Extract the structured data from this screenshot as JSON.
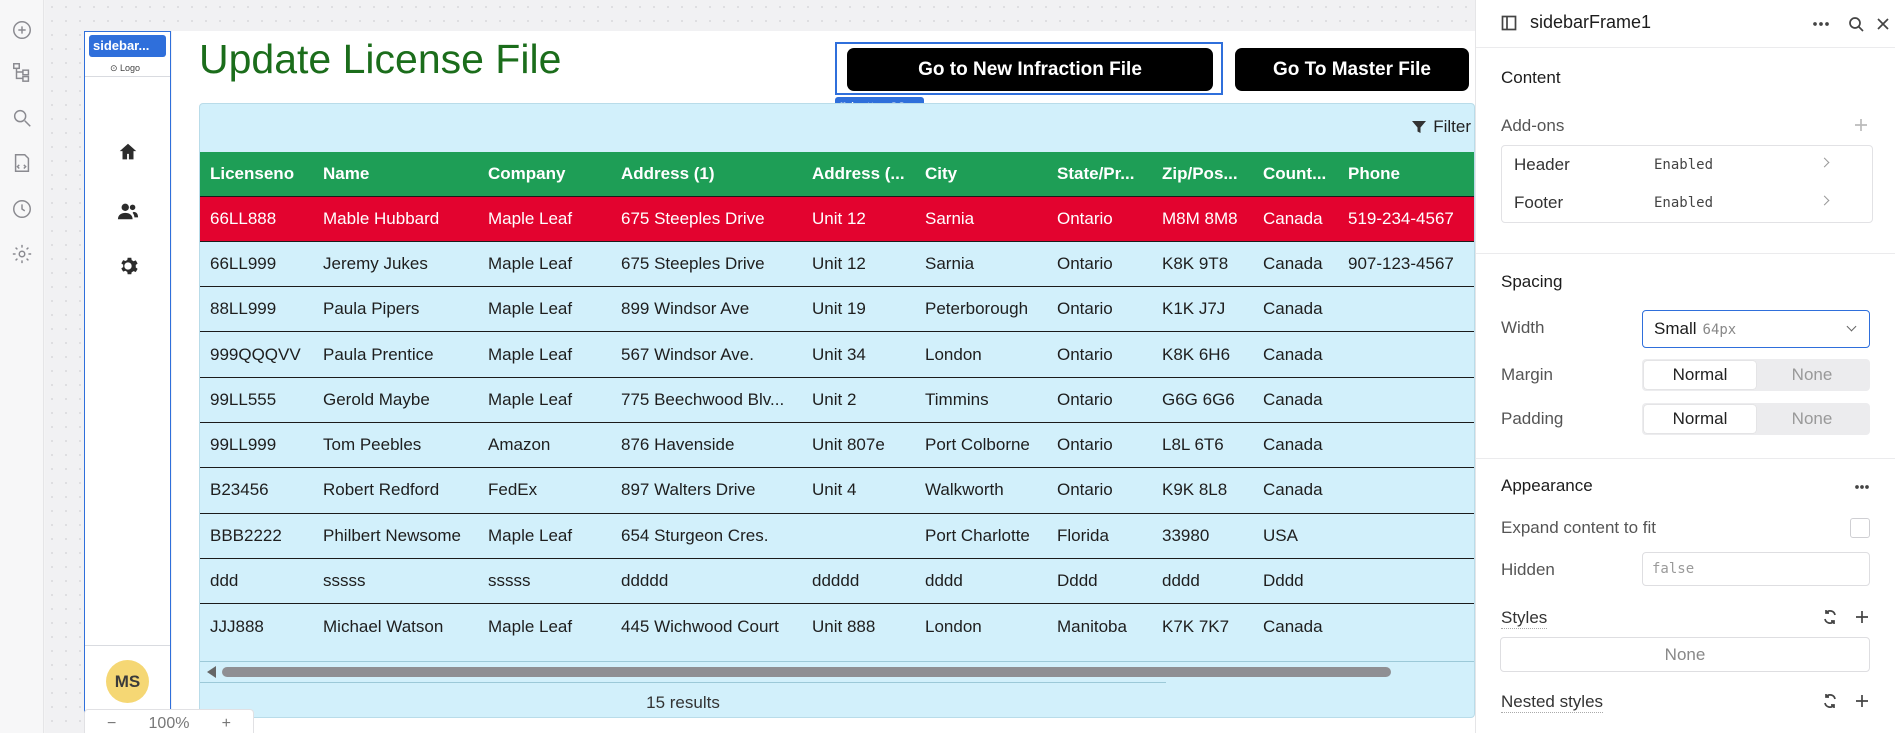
{
  "rail": {
    "icons": [
      "add-icon",
      "tree-icon",
      "search-icon",
      "code-icon",
      "history-icon",
      "settings-icon"
    ]
  },
  "app_sidebar": {
    "tag": "sidebar...",
    "logo": "⊙ Logo",
    "nav_icons": [
      "home-icon",
      "users-icon",
      "gear-icon"
    ],
    "avatar": "MS"
  },
  "page": {
    "title": "Update License File"
  },
  "buttons": {
    "new_infraction": "Go to New Infraction File",
    "master": "Go To Master File",
    "selected_chip": "button23"
  },
  "table": {
    "filter_label": "Filter",
    "columns": [
      "Licenseno",
      "Name",
      "Company",
      "Address (1)",
      "Address (...",
      "City",
      "State/Pr...",
      "Zip/Pos...",
      "Count...",
      "Phone"
    ],
    "rows": [
      [
        "66LL888",
        "Mable Hubbard",
        "Maple Leaf",
        "675 Steeples Drive",
        "Unit 12",
        "Sarnia",
        "Ontario",
        "M8M 8M8",
        "Canada",
        "519-234-4567"
      ],
      [
        "66LL999",
        "Jeremy Jukes",
        "Maple Leaf",
        "675 Steeples Drive",
        "Unit 12",
        "Sarnia",
        "Ontario",
        "K8K 9T8",
        "Canada",
        "907-123-4567"
      ],
      [
        "88LL999",
        "Paula Pipers",
        "Maple Leaf",
        "899 Windsor Ave",
        "Unit 19",
        "Peterborough",
        "Ontario",
        "K1K J7J",
        "Canada",
        ""
      ],
      [
        "999QQQVV",
        "Paula Prentice",
        "Maple Leaf",
        "567 Windsor Ave.",
        "Unit 34",
        "London",
        "Ontario",
        "K8K 6H6",
        "Canada",
        ""
      ],
      [
        "99LL555",
        "Gerold Maybe",
        "Maple Leaf",
        "775 Beechwood Blv...",
        "Unit 2",
        "Timmins",
        "Ontario",
        "G6G 6G6",
        "Canada",
        ""
      ],
      [
        "99LL999",
        "Tom Peebles",
        "Amazon",
        "876 Havenside",
        "Unit 807e",
        "Port Colborne",
        "Ontario",
        "L8L 6T6",
        "Canada",
        ""
      ],
      [
        "B23456",
        "Robert Redford",
        "FedEx",
        "897 Walters Drive",
        "Unit 4",
        "Walkworth",
        "Ontario",
        "K9K 8L8",
        "Canada",
        ""
      ],
      [
        "BBB2222",
        "Philbert Newsome",
        "Maple Leaf",
        "654 Sturgeon Cres.",
        "",
        "Port Charlotte",
        "Florida",
        "33980",
        "USA",
        ""
      ],
      [
        "ddd",
        "sssss",
        "sssss",
        "ddddd",
        "ddddd",
        "dddd",
        "Dddd",
        "dddd",
        "Dddd",
        ""
      ],
      [
        "JJJ888",
        "Michael Watson",
        "Maple Leaf",
        "445 Wichwood Court",
        "Unit 888",
        "London",
        "Manitoba",
        "K7K 7K7",
        "Canada",
        ""
      ]
    ],
    "results": "15 results"
  },
  "zoom": {
    "minus": "−",
    "level": "100%",
    "plus": "+"
  },
  "panel": {
    "name": "sidebarFrame1",
    "content": "Content",
    "addons": "Add-ons",
    "header_label": "Header",
    "header_value": "Enabled",
    "footer_label": "Footer",
    "footer_value": "Enabled",
    "spacing": "Spacing",
    "width_label": "Width",
    "width_value": "Small",
    "width_hint": "64px",
    "margin_label": "Margin",
    "padding_label": "Padding",
    "seg_normal": "Normal",
    "seg_none": "None",
    "appearance": "Appearance",
    "expand_label": "Expand content to fit",
    "hidden_label": "Hidden",
    "hidden_value": "false",
    "styles_label": "Styles",
    "styles_value": "None",
    "nested_label": "Nested styles"
  }
}
